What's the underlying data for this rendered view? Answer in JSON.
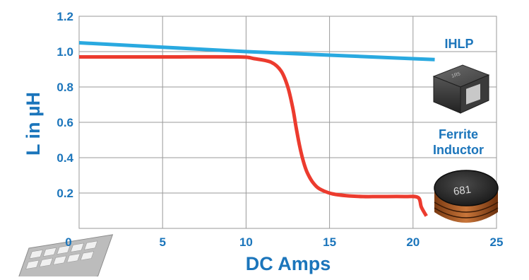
{
  "chart_data": {
    "type": "line",
    "xlabel": "DC Amps",
    "ylabel": "L in µH",
    "xlim": [
      0,
      25
    ],
    "ylim": [
      0,
      1.2
    ],
    "x_ticks": [
      "0",
      "5",
      "10",
      "15",
      "20",
      "25"
    ],
    "y_ticks": [
      "0.2",
      "0.4",
      "0.6",
      "0.8",
      "1.0",
      "1.2"
    ],
    "grid": true,
    "series": [
      {
        "name": "IHLP",
        "color": "#29a9e0",
        "x": [
          0,
          5,
          10,
          15,
          20,
          21.3
        ],
        "y": [
          1.05,
          1.025,
          1.0,
          0.98,
          0.96,
          0.955
        ]
      },
      {
        "name": "Ferrite Inductor",
        "color": "#ec3b2e",
        "x": [
          0,
          5,
          9.5,
          10.5,
          11.5,
          12.1,
          12.5,
          12.8,
          13.0,
          13.2,
          13.4,
          13.6,
          13.8,
          14.0,
          14.3,
          14.7,
          15.2,
          16.0,
          17.0,
          18.0,
          19.5,
          20.3,
          20.5,
          20.8
        ],
        "y": [
          0.97,
          0.97,
          0.97,
          0.96,
          0.94,
          0.89,
          0.8,
          0.68,
          0.57,
          0.47,
          0.39,
          0.33,
          0.29,
          0.26,
          0.23,
          0.21,
          0.195,
          0.185,
          0.18,
          0.18,
          0.18,
          0.175,
          0.12,
          0.07
        ]
      }
    ],
    "axis_color": "#1b75bb",
    "line_label_color": "#1b75bb",
    "grid_color": "#9a9a9a",
    "icons": [
      "ihlp-inductor-icon",
      "ferrite-inductor-icon",
      "chip-icon"
    ]
  }
}
